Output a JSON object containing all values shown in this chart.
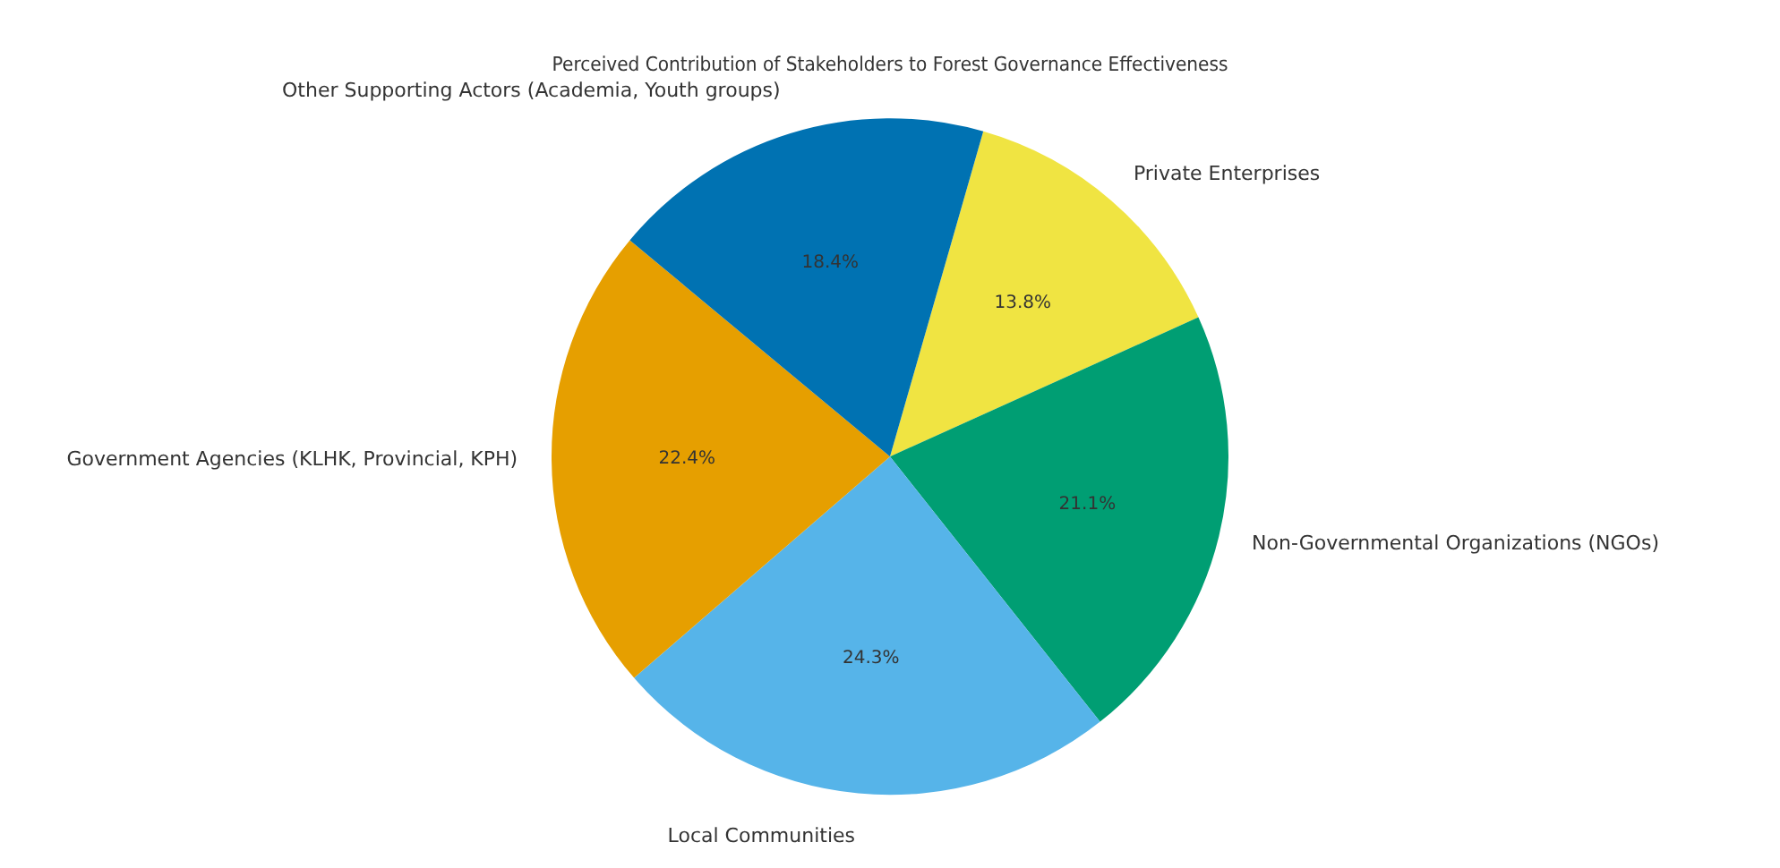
{
  "chart_data": {
    "type": "pie",
    "title": "Perceived Contribution of Stakeholders to Forest Governance Effectiveness",
    "categories": [
      "Private Enterprises",
      "Non-Governmental Organizations (NGOs)",
      "Local Communities",
      "Government Agencies (KLHK, Provincial, KPH)",
      "Other Supporting Actors (Academia, Youth groups)"
    ],
    "values": [
      13.8,
      21.1,
      24.3,
      22.4,
      18.4
    ],
    "value_labels": [
      "13.8%",
      "21.1%",
      "24.3%",
      "22.4%",
      "18.4%"
    ],
    "colors": [
      "#f0e442",
      "#009e73",
      "#56b4e9",
      "#e69f00",
      "#0072b2"
    ],
    "legend": false
  }
}
